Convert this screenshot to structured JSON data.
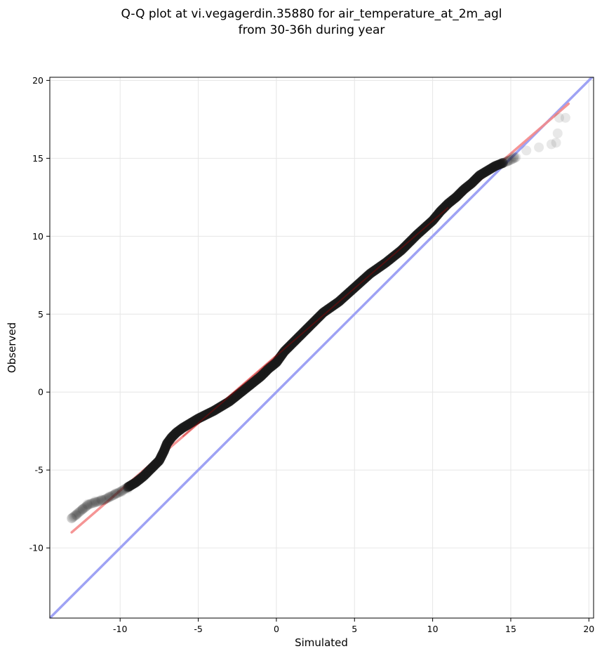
{
  "chart_data": {
    "type": "scatter",
    "title_lines": [
      "Q-Q plot at vi.vegagerdin.35880 for air_temperature_at_2m_agl",
      "from 30-36h during year"
    ],
    "xlabel": "Simulated",
    "ylabel": "Observed",
    "xlim": [
      -14.5,
      20.3
    ],
    "ylim": [
      -14.5,
      20.2
    ],
    "xticks": [
      -10,
      -5,
      0,
      5,
      10,
      15,
      20
    ],
    "yticks": [
      -10,
      -5,
      0,
      5,
      10,
      15,
      20
    ],
    "grid": true,
    "quantile_curve": [
      [
        -13.1,
        -8.1
      ],
      [
        -12.5,
        -7.6
      ],
      [
        -12.0,
        -7.2
      ],
      [
        -11.0,
        -6.9
      ],
      [
        -10.0,
        -6.4
      ],
      [
        -9.0,
        -5.8
      ],
      [
        -8.5,
        -5.4
      ],
      [
        -8.0,
        -4.9
      ],
      [
        -7.5,
        -4.4
      ],
      [
        -7.2,
        -3.8
      ],
      [
        -7.0,
        -3.3
      ],
      [
        -6.7,
        -2.9
      ],
      [
        -6.4,
        -2.6
      ],
      [
        -6.0,
        -2.3
      ],
      [
        -5.5,
        -2.0
      ],
      [
        -5.0,
        -1.7
      ],
      [
        -4.0,
        -1.2
      ],
      [
        -3.0,
        -0.6
      ],
      [
        -2.0,
        0.2
      ],
      [
        -1.0,
        1.0
      ],
      [
        -0.5,
        1.5
      ],
      [
        0.0,
        1.9
      ],
      [
        0.5,
        2.6
      ],
      [
        1.0,
        3.1
      ],
      [
        2.0,
        4.1
      ],
      [
        3.0,
        5.1
      ],
      [
        4.0,
        5.8
      ],
      [
        5.0,
        6.7
      ],
      [
        6.0,
        7.6
      ],
      [
        7.0,
        8.3
      ],
      [
        8.0,
        9.1
      ],
      [
        9.0,
        10.1
      ],
      [
        10.0,
        11.0
      ],
      [
        10.5,
        11.6
      ],
      [
        11.0,
        12.1
      ],
      [
        11.5,
        12.5
      ],
      [
        12.0,
        13.0
      ],
      [
        12.5,
        13.4
      ],
      [
        13.0,
        13.9
      ],
      [
        13.5,
        14.2
      ],
      [
        14.0,
        14.5
      ],
      [
        14.5,
        14.7
      ],
      [
        15.0,
        14.9
      ],
      [
        15.4,
        15.1
      ]
    ],
    "tail_points": [
      [
        -13.1,
        -8.1
      ],
      [
        -12.8,
        -7.9
      ],
      [
        -12.4,
        -7.5
      ],
      [
        -12.1,
        -7.2
      ],
      [
        -11.6,
        -7.0
      ],
      [
        -11.2,
        -6.9
      ],
      [
        -10.7,
        -6.7
      ],
      [
        -10.3,
        -6.5
      ],
      [
        -9.9,
        -6.4
      ],
      [
        -9.5,
        -6.2
      ],
      [
        14.8,
        14.8
      ],
      [
        15.2,
        15.1
      ],
      [
        16.0,
        15.5
      ],
      [
        16.8,
        15.7
      ],
      [
        17.6,
        15.9
      ],
      [
        17.9,
        16.0
      ],
      [
        18.0,
        16.6
      ],
      [
        18.1,
        17.6
      ],
      [
        18.5,
        17.6
      ]
    ],
    "fit_line": {
      "x": [
        -13.1,
        18.7
      ],
      "y": [
        -9.0,
        18.5
      ],
      "color": "#f48a8a"
    },
    "identity_line": {
      "color": "#9ea2f4"
    },
    "point_color": "#1a1a1a"
  }
}
